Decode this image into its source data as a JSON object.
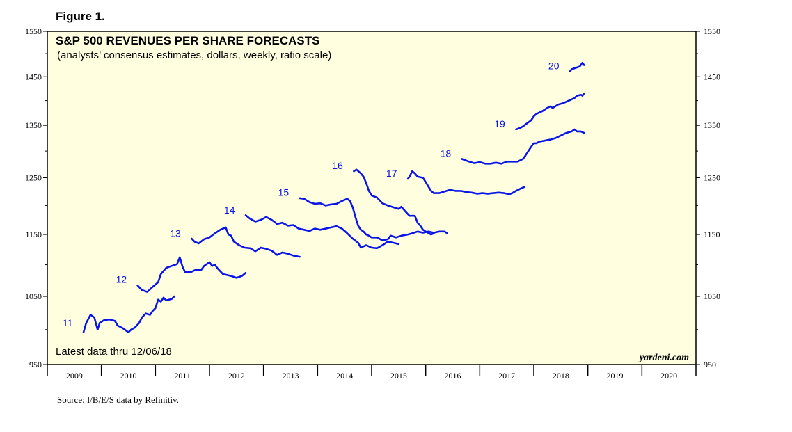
{
  "figure_label": "Figure 1.",
  "source": "Source: I/B/E/S data by Refinitiv.",
  "colors": {
    "line": "#0a14e6",
    "label": "#0a14e6",
    "background": "#ffffe0",
    "frame": "#000000"
  },
  "chart_data": {
    "type": "line",
    "title": "S&P 500 REVENUES PER SHARE FORECASTS",
    "subtitle": "(analysts’ consensus estimates, dollars, weekly, ratio scale)",
    "note": "Latest data thru 12/06/18",
    "brand": "yardeni.com",
    "y_scale": "log",
    "ylim": [
      950,
      1550
    ],
    "yticks": [
      950,
      1050,
      1150,
      1250,
      1350,
      1450,
      1550
    ],
    "ytick_labels": [
      "950",
      "1050",
      "1150",
      "1250",
      "1350",
      "1450",
      "1550"
    ],
    "y_minor_ticks": [
      1000,
      1100,
      1200,
      1300,
      1400,
      1500
    ],
    "xlim": [
      2009,
      2021
    ],
    "x_tick_years": [
      2009,
      2010,
      2011,
      2012,
      2013,
      2014,
      2015,
      2016,
      2017,
      2018,
      2019,
      2020,
      2021
    ],
    "x_labels": [
      "2009",
      "2010",
      "2011",
      "2012",
      "2013",
      "2014",
      "2015",
      "2016",
      "2017",
      "2018",
      "2019",
      "2020"
    ],
    "series": [
      {
        "name": "11",
        "label": "11",
        "points": [
          [
            2009.67,
            996
          ],
          [
            2009.72,
            1010
          ],
          [
            2009.8,
            1022
          ],
          [
            2009.87,
            1018
          ],
          [
            2009.93,
            1000
          ],
          [
            2009.97,
            1010
          ],
          [
            2010.05,
            1014
          ],
          [
            2010.15,
            1015
          ],
          [
            2010.25,
            1013
          ],
          [
            2010.3,
            1006
          ],
          [
            2010.4,
            1002
          ],
          [
            2010.5,
            996
          ],
          [
            2010.55,
            1000
          ],
          [
            2010.62,
            1003
          ],
          [
            2010.7,
            1010
          ],
          [
            2010.75,
            1018
          ],
          [
            2010.82,
            1024
          ],
          [
            2010.9,
            1022
          ],
          [
            2010.95,
            1028
          ],
          [
            2011.0,
            1032
          ],
          [
            2011.05,
            1045
          ],
          [
            2011.1,
            1042
          ],
          [
            2011.15,
            1048
          ],
          [
            2011.2,
            1044
          ],
          [
            2011.3,
            1046
          ],
          [
            2011.35,
            1050
          ]
        ]
      },
      {
        "name": "12",
        "label": "12",
        "points": [
          [
            2010.67,
            1067
          ],
          [
            2010.75,
            1060
          ],
          [
            2010.85,
            1057
          ],
          [
            2010.95,
            1065
          ],
          [
            2011.05,
            1072
          ],
          [
            2011.1,
            1085
          ],
          [
            2011.2,
            1095
          ],
          [
            2011.3,
            1098
          ],
          [
            2011.4,
            1101
          ],
          [
            2011.45,
            1112
          ],
          [
            2011.5,
            1097
          ],
          [
            2011.55,
            1088
          ],
          [
            2011.65,
            1088
          ],
          [
            2011.75,
            1092
          ],
          [
            2011.85,
            1092
          ],
          [
            2011.9,
            1098
          ],
          [
            2012.0,
            1104
          ],
          [
            2012.05,
            1098
          ],
          [
            2012.1,
            1100
          ],
          [
            2012.15,
            1094
          ],
          [
            2012.25,
            1085
          ],
          [
            2012.4,
            1082
          ],
          [
            2012.5,
            1079
          ],
          [
            2012.6,
            1082
          ],
          [
            2012.67,
            1087
          ]
        ]
      },
      {
        "name": "13",
        "label": "13",
        "points": [
          [
            2011.67,
            1143
          ],
          [
            2011.72,
            1138
          ],
          [
            2011.8,
            1135
          ],
          [
            2011.9,
            1142
          ],
          [
            2012.0,
            1145
          ],
          [
            2012.1,
            1152
          ],
          [
            2012.2,
            1158
          ],
          [
            2012.3,
            1162
          ],
          [
            2012.35,
            1150
          ],
          [
            2012.4,
            1148
          ],
          [
            2012.45,
            1138
          ],
          [
            2012.55,
            1132
          ],
          [
            2012.65,
            1128
          ],
          [
            2012.75,
            1127
          ],
          [
            2012.85,
            1122
          ],
          [
            2012.95,
            1128
          ],
          [
            2013.05,
            1126
          ],
          [
            2013.15,
            1123
          ],
          [
            2013.25,
            1116
          ],
          [
            2013.35,
            1120
          ],
          [
            2013.45,
            1118
          ],
          [
            2013.55,
            1115
          ],
          [
            2013.67,
            1113
          ]
        ]
      },
      {
        "name": "14",
        "label": "14",
        "points": [
          [
            2012.67,
            1183
          ],
          [
            2012.75,
            1177
          ],
          [
            2012.85,
            1172
          ],
          [
            2012.95,
            1175
          ],
          [
            2013.05,
            1180
          ],
          [
            2013.15,
            1175
          ],
          [
            2013.25,
            1168
          ],
          [
            2013.35,
            1170
          ],
          [
            2013.45,
            1165
          ],
          [
            2013.55,
            1166
          ],
          [
            2013.65,
            1160
          ],
          [
            2013.75,
            1158
          ],
          [
            2013.85,
            1156
          ],
          [
            2013.95,
            1160
          ],
          [
            2014.05,
            1158
          ],
          [
            2014.15,
            1160
          ],
          [
            2014.25,
            1162
          ],
          [
            2014.35,
            1164
          ],
          [
            2014.45,
            1160
          ],
          [
            2014.55,
            1152
          ],
          [
            2014.65,
            1143
          ],
          [
            2014.75,
            1136
          ],
          [
            2014.8,
            1128
          ],
          [
            2014.85,
            1130
          ],
          [
            2014.9,
            1132
          ],
          [
            2015.0,
            1128
          ],
          [
            2015.1,
            1127
          ],
          [
            2015.2,
            1132
          ],
          [
            2015.3,
            1138
          ],
          [
            2015.4,
            1136
          ],
          [
            2015.5,
            1134
          ]
        ]
      },
      {
        "name": "15",
        "label": "15",
        "points": [
          [
            2013.67,
            1213
          ],
          [
            2013.75,
            1212
          ],
          [
            2013.85,
            1206
          ],
          [
            2013.95,
            1203
          ],
          [
            2014.05,
            1204
          ],
          [
            2014.15,
            1200
          ],
          [
            2014.25,
            1202
          ],
          [
            2014.35,
            1203
          ],
          [
            2014.45,
            1208
          ],
          [
            2014.55,
            1212
          ],
          [
            2014.6,
            1208
          ],
          [
            2014.65,
            1197
          ],
          [
            2014.7,
            1180
          ],
          [
            2014.75,
            1165
          ],
          [
            2014.8,
            1158
          ],
          [
            2014.85,
            1155
          ],
          [
            2014.9,
            1150
          ],
          [
            2014.95,
            1148
          ],
          [
            2015.0,
            1145
          ],
          [
            2015.1,
            1145
          ],
          [
            2015.2,
            1140
          ],
          [
            2015.3,
            1142
          ],
          [
            2015.35,
            1148
          ],
          [
            2015.45,
            1145
          ],
          [
            2015.55,
            1148
          ],
          [
            2015.67,
            1150
          ],
          [
            2015.75,
            1152
          ],
          [
            2015.85,
            1155
          ],
          [
            2015.95,
            1153
          ],
          [
            2016.05,
            1155
          ],
          [
            2016.15,
            1153
          ],
          [
            2016.25,
            1155
          ],
          [
            2016.35,
            1155
          ],
          [
            2016.4,
            1152
          ]
        ]
      },
      {
        "name": "16",
        "label": "16",
        "points": [
          [
            2014.67,
            1262
          ],
          [
            2014.72,
            1265
          ],
          [
            2014.8,
            1258
          ],
          [
            2014.85,
            1252
          ],
          [
            2014.9,
            1240
          ],
          [
            2014.95,
            1226
          ],
          [
            2015.0,
            1218
          ],
          [
            2015.1,
            1214
          ],
          [
            2015.2,
            1204
          ],
          [
            2015.3,
            1200
          ],
          [
            2015.4,
            1197
          ],
          [
            2015.5,
            1194
          ],
          [
            2015.55,
            1198
          ],
          [
            2015.62,
            1190
          ],
          [
            2015.7,
            1182
          ],
          [
            2015.8,
            1182
          ],
          [
            2015.85,
            1170
          ],
          [
            2015.9,
            1165
          ],
          [
            2015.95,
            1158
          ],
          [
            2016.0,
            1155
          ],
          [
            2016.1,
            1150
          ],
          [
            2016.15,
            1152
          ]
        ]
      },
      {
        "name": "17",
        "label": "17",
        "points": [
          [
            2015.67,
            1248
          ],
          [
            2015.7,
            1252
          ],
          [
            2015.75,
            1262
          ],
          [
            2015.8,
            1258
          ],
          [
            2015.85,
            1252
          ],
          [
            2015.95,
            1250
          ],
          [
            2016.0,
            1242
          ],
          [
            2016.05,
            1234
          ],
          [
            2016.1,
            1226
          ],
          [
            2016.15,
            1222
          ],
          [
            2016.25,
            1222
          ],
          [
            2016.35,
            1225
          ],
          [
            2016.45,
            1228
          ],
          [
            2016.55,
            1226
          ],
          [
            2016.65,
            1226
          ],
          [
            2016.75,
            1224
          ],
          [
            2016.85,
            1223
          ],
          [
            2016.95,
            1221
          ],
          [
            2017.05,
            1222
          ],
          [
            2017.15,
            1221
          ],
          [
            2017.25,
            1222
          ],
          [
            2017.35,
            1223
          ],
          [
            2017.45,
            1222
          ],
          [
            2017.55,
            1220
          ],
          [
            2017.6,
            1222
          ],
          [
            2017.67,
            1226
          ],
          [
            2017.75,
            1230
          ],
          [
            2017.82,
            1233
          ]
        ]
      },
      {
        "name": "18",
        "label": "18",
        "points": [
          [
            2016.67,
            1285
          ],
          [
            2016.72,
            1283
          ],
          [
            2016.8,
            1280
          ],
          [
            2016.9,
            1277
          ],
          [
            2017.0,
            1279
          ],
          [
            2017.1,
            1276
          ],
          [
            2017.2,
            1276
          ],
          [
            2017.3,
            1278
          ],
          [
            2017.4,
            1276
          ],
          [
            2017.5,
            1280
          ],
          [
            2017.6,
            1280
          ],
          [
            2017.7,
            1280
          ],
          [
            2017.8,
            1285
          ],
          [
            2017.85,
            1292
          ],
          [
            2017.9,
            1300
          ],
          [
            2017.95,
            1308
          ],
          [
            2018.0,
            1315
          ],
          [
            2018.05,
            1315
          ],
          [
            2018.1,
            1318
          ],
          [
            2018.2,
            1320
          ],
          [
            2018.3,
            1322
          ],
          [
            2018.4,
            1325
          ],
          [
            2018.5,
            1330
          ],
          [
            2018.6,
            1335
          ],
          [
            2018.7,
            1338
          ],
          [
            2018.75,
            1342
          ],
          [
            2018.8,
            1338
          ],
          [
            2018.87,
            1338
          ],
          [
            2018.93,
            1335
          ]
        ]
      },
      {
        "name": "19",
        "label": "19",
        "points": [
          [
            2017.67,
            1342
          ],
          [
            2017.75,
            1345
          ],
          [
            2017.8,
            1348
          ],
          [
            2017.85,
            1352
          ],
          [
            2017.95,
            1360
          ],
          [
            2018.0,
            1368
          ],
          [
            2018.05,
            1373
          ],
          [
            2018.15,
            1378
          ],
          [
            2018.25,
            1385
          ],
          [
            2018.3,
            1388
          ],
          [
            2018.35,
            1385
          ],
          [
            2018.45,
            1392
          ],
          [
            2018.55,
            1395
          ],
          [
            2018.65,
            1400
          ],
          [
            2018.75,
            1405
          ],
          [
            2018.8,
            1410
          ],
          [
            2018.87,
            1412
          ],
          [
            2018.9,
            1410
          ],
          [
            2018.93,
            1415
          ]
        ]
      },
      {
        "name": "20",
        "label": "20",
        "points": [
          [
            2018.67,
            1462
          ],
          [
            2018.7,
            1466
          ],
          [
            2018.75,
            1468
          ],
          [
            2018.8,
            1470
          ],
          [
            2018.85,
            1472
          ],
          [
            2018.9,
            1480
          ],
          [
            2018.93,
            1475
          ]
        ]
      }
    ],
    "series_label_positions_data": [
      {
        "name": "11",
        "x": 2009.47,
        "y": 1005
      },
      {
        "name": "12",
        "x": 2010.47,
        "y": 1071
      },
      {
        "name": "13",
        "x": 2011.47,
        "y": 1146
      },
      {
        "name": "14",
        "x": 2012.47,
        "y": 1186
      },
      {
        "name": "15",
        "x": 2013.47,
        "y": 1217
      },
      {
        "name": "16",
        "x": 2014.47,
        "y": 1266
      },
      {
        "name": "17",
        "x": 2015.47,
        "y": 1252
      },
      {
        "name": "18",
        "x": 2016.47,
        "y": 1289
      },
      {
        "name": "19",
        "x": 2017.47,
        "y": 1346
      },
      {
        "name": "20",
        "x": 2018.47,
        "y": 1466
      }
    ]
  }
}
